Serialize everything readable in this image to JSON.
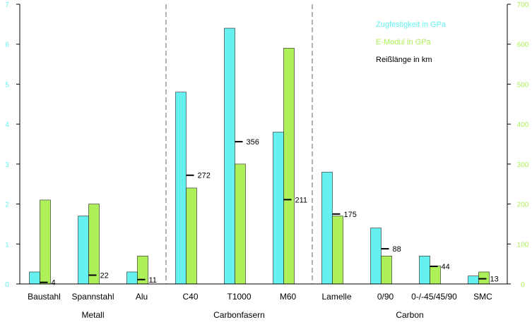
{
  "chart_data": {
    "type": "bar",
    "categories": [
      "Baustahl",
      "Spannstahl",
      "Alu",
      "C40",
      "T1000",
      "M60",
      "Lamelle",
      "0/90",
      "0-/-45/45/90",
      "SMC"
    ],
    "groups": [
      {
        "label": "Metall",
        "from": 0,
        "to": 2
      },
      {
        "label": "Carbonfasern",
        "from": 3,
        "to": 5
      },
      {
        "label": "Carbon",
        "from": 6,
        "to": 9
      }
    ],
    "series": [
      {
        "name": "Zugfestigkeit in GPa",
        "axis": "left",
        "color": "#66f0f0",
        "values": [
          0.3,
          1.7,
          0.3,
          4.8,
          6.4,
          3.8,
          2.8,
          1.4,
          0.7,
          0.2
        ]
      },
      {
        "name": "E-Modul in GPa",
        "axis": "right",
        "color": "#aef05a",
        "values": [
          210,
          200,
          70,
          240,
          300,
          590,
          170,
          70,
          45,
          30
        ]
      },
      {
        "name": "Reißlänge in km",
        "type": "marker",
        "axis": "right",
        "color": "#000000",
        "values": [
          4,
          22,
          11,
          272,
          356,
          211,
          175,
          88,
          44,
          13
        ]
      }
    ],
    "y_left": {
      "min": 0,
      "max": 7,
      "ticks": [
        "0",
        "1",
        "2",
        "3",
        "4",
        "5",
        "6",
        "7"
      ],
      "color": "#66f0f0"
    },
    "y_right": {
      "min": 0,
      "max": 700,
      "ticks": [
        "0",
        "100",
        "200",
        "300",
        "400",
        "500",
        "600",
        "700"
      ],
      "color": "#aef05a"
    },
    "separators_after": [
      2,
      5
    ],
    "grid": false,
    "legend_position": "top-right"
  }
}
